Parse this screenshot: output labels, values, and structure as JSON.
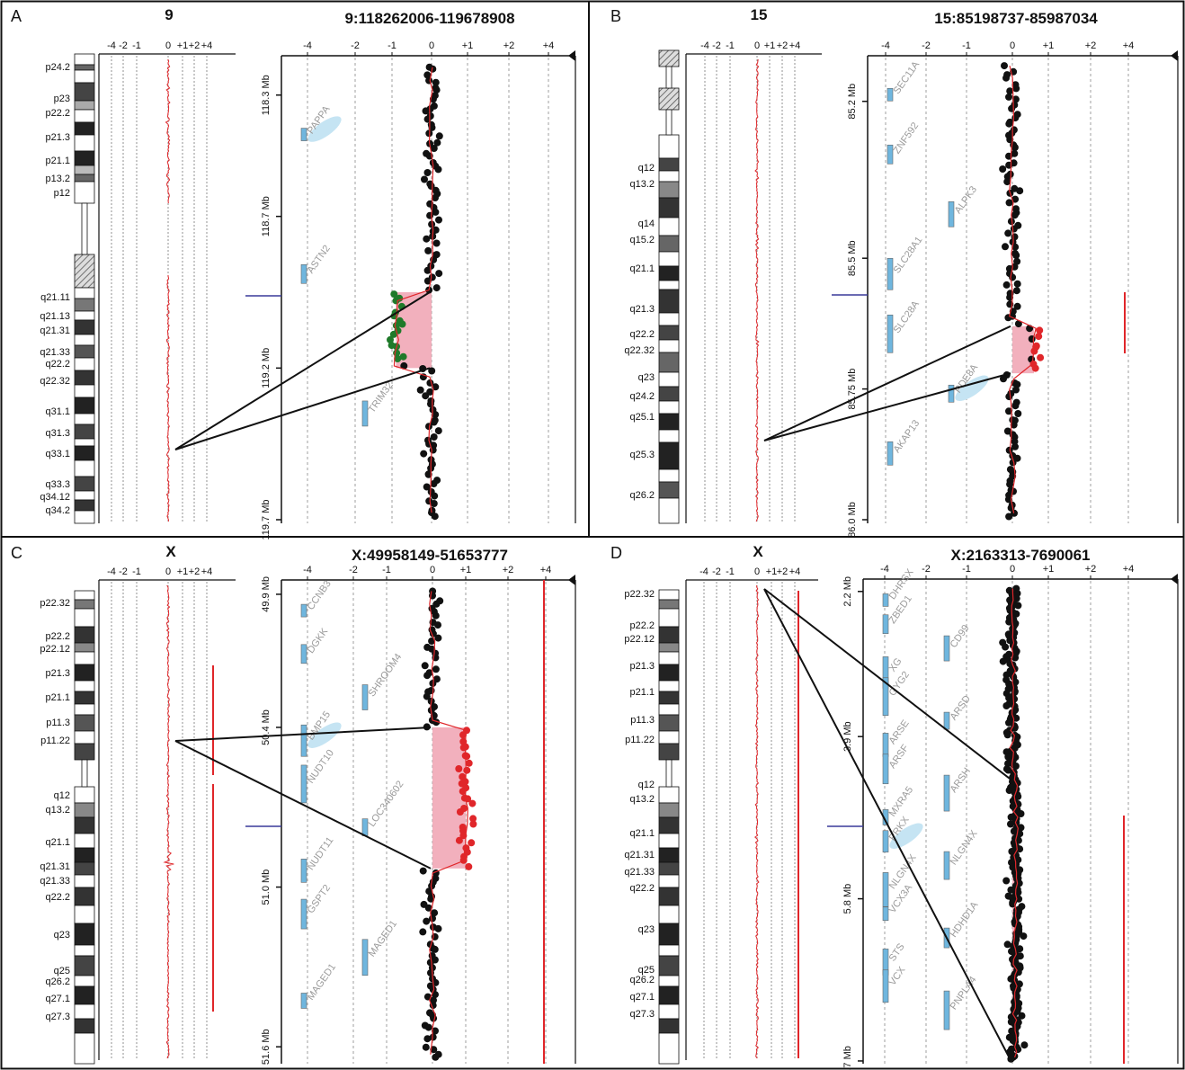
{
  "colors": {
    "trace": "#e0262a",
    "gene": "#6fb6de",
    "highlight": "#f0a2b2",
    "dot": "#111111",
    "dot_gain": "#e0262a",
    "dot_loss": "#1f7a2a",
    "marker": "#3a3a9a"
  },
  "chart_data": [
    {
      "type": "scatter",
      "panel": "A",
      "chromosome_title": "9",
      "title": "9:118262006-119678908",
      "x_tick_labels": [
        "-4",
        "-2",
        "-1",
        "0",
        "+1",
        "+2",
        "+4"
      ],
      "overview_tick_labels": [
        "-4",
        "-2",
        "-1",
        "0",
        "+1",
        "+2",
        "+4"
      ],
      "y_tick_labels": [
        "118.3 Mb",
        "118.7 Mb",
        "119.2 Mb",
        "119.7 Mb"
      ],
      "y_ticks": [
        118.3,
        118.7,
        119.2,
        119.7
      ],
      "ylim": [
        118.2,
        119.7
      ],
      "bands": [
        "p24.2",
        "p23",
        "p22.2",
        "p21.3",
        "p21.1",
        "p13.2",
        "p12",
        "q21.11",
        "q21.13",
        "q21.31",
        "q21.33",
        "q22.2",
        "q22.32",
        "q31.1",
        "q31.3",
        "q33.1",
        "q33.3",
        "q34.12",
        "q34.2"
      ],
      "genes": [
        {
          "label": "PAPPA",
          "highlight": true
        },
        {
          "label": "ASTN2",
          "highlight": false
        },
        {
          "label": "TRIM32",
          "highlight": false
        }
      ],
      "region": [
        118.95,
        119.2
      ],
      "region_value": -0.9
    },
    {
      "type": "scatter",
      "panel": "B",
      "chromosome_title": "15",
      "title": "15:85198737-85987034",
      "x_tick_labels": [
        "-4",
        "-2",
        "-1",
        "0",
        "+1",
        "+2",
        "+4"
      ],
      "overview_tick_labels": [
        "-4",
        "-2",
        "-1",
        "0",
        "+1",
        "+2",
        "+4"
      ],
      "y_tick_labels": [
        "85.2 Mb",
        "85.5 Mb",
        "85.75 Mb",
        "86.0 Mb"
      ],
      "y_ticks": [
        85.2,
        85.5,
        85.75,
        86.0
      ],
      "ylim": [
        85.13,
        86.0
      ],
      "bands": [
        "q12",
        "q13.2",
        "q14",
        "q15.2",
        "q21.1",
        "q21.3",
        "q22.2",
        "q22.32",
        "q23",
        "q24.2",
        "q25.1",
        "q25.3",
        "q26.2"
      ],
      "genes": [
        {
          "label": "SEC11A",
          "highlight": false
        },
        {
          "label": "ZNF592",
          "highlight": false
        },
        {
          "label": "ALPK3",
          "highlight": false
        },
        {
          "label": "SLC28A1",
          "highlight": false
        },
        {
          "label": "SLC28A",
          "highlight": false
        },
        {
          "label": "PDE8A",
          "highlight": true
        },
        {
          "label": "AKAP13",
          "highlight": false
        }
      ],
      "region": [
        85.63,
        85.72
      ],
      "region_value": 0.6
    },
    {
      "type": "scatter",
      "panel": "C",
      "chromosome_title": "X",
      "title": "X:49958149-51653777",
      "x_tick_labels": [
        "-4",
        "-2",
        "-1",
        "0",
        "+1",
        "+2",
        "+4"
      ],
      "overview_tick_labels": [
        "-4",
        "-2",
        "-1",
        "0",
        "+1",
        "+2",
        "+4"
      ],
      "y_tick_labels": [
        "49.9 Mb",
        "50.4 Mb",
        "51.0 Mb",
        "51.6 Mb"
      ],
      "y_ticks": [
        49.9,
        50.4,
        51.0,
        51.6
      ],
      "ylim": [
        49.88,
        51.65
      ],
      "bands": [
        "p22.32",
        "p22.2",
        "p22.12",
        "p21.3",
        "p21.1",
        "p11.3",
        "p11.22",
        "q12",
        "q13.2",
        "q21.1",
        "q21.31",
        "q21.33",
        "q22.2",
        "q23",
        "q25",
        "q26.2",
        "q27.1",
        "q27.3"
      ],
      "genes": [
        {
          "label": "CCNB3",
          "highlight": false
        },
        {
          "label": "DGKK",
          "highlight": false
        },
        {
          "label": "SHROOM4",
          "highlight": false
        },
        {
          "label": "BMP15",
          "highlight": true
        },
        {
          "label": "NUDT10",
          "highlight": false
        },
        {
          "label": "LOC340602",
          "highlight": false
        },
        {
          "label": "NUDT11",
          "highlight": false
        },
        {
          "label": "GSPT2",
          "highlight": false
        },
        {
          "label": "MAGED1",
          "highlight": false
        },
        {
          "label": "MAGED1",
          "highlight": false
        }
      ],
      "region": [
        50.4,
        50.93
      ],
      "region_value": 1.0
    },
    {
      "type": "scatter",
      "panel": "D",
      "chromosome_title": "X",
      "title": "X:2163313-7690061",
      "x_tick_labels": [
        "-4",
        "-2",
        "-1",
        "0",
        "+1",
        "+2",
        "+4"
      ],
      "overview_tick_labels": [
        "-4",
        "-2",
        "-1",
        "0",
        "+1",
        "+2",
        "+4"
      ],
      "y_tick_labels": [
        "2.2 Mb",
        "3.9 Mb",
        "5.8 Mb",
        "7.7 Mb"
      ],
      "y_ticks": [
        2.2,
        3.9,
        5.8,
        7.7
      ],
      "ylim": [
        2.16,
        7.69
      ],
      "bands": [
        "p22.32",
        "p22.2",
        "p22.12",
        "p21.3",
        "p21.1",
        "p11.3",
        "p11.22",
        "q12",
        "q13.2",
        "q21.1",
        "q21.31",
        "q21.33",
        "q22.2",
        "q23",
        "q25",
        "q26.2",
        "q27.1",
        "q27.3"
      ],
      "genes": [
        {
          "label": "DHRSX",
          "highlight": false
        },
        {
          "label": "ZBED1",
          "highlight": false
        },
        {
          "label": "CD99",
          "highlight": false
        },
        {
          "label": "XG",
          "highlight": false
        },
        {
          "label": "GYG2",
          "highlight": false
        },
        {
          "label": "ARSD",
          "highlight": false
        },
        {
          "label": "ARSE",
          "highlight": false
        },
        {
          "label": "ARSF",
          "highlight": false
        },
        {
          "label": "ARSH",
          "highlight": false
        },
        {
          "label": "MXRA5",
          "highlight": false
        },
        {
          "label": "PRKX",
          "highlight": true
        },
        {
          "label": "NLGN4X",
          "highlight": false
        },
        {
          "label": "NLGN4X",
          "highlight": false
        },
        {
          "label": "VCX3A",
          "highlight": false
        },
        {
          "label": "HDHD1A",
          "highlight": false
        },
        {
          "label": "STS",
          "highlight": false
        },
        {
          "label": "VCX",
          "highlight": false
        },
        {
          "label": "PNPLA4",
          "highlight": false
        }
      ],
      "region": [
        4.4,
        7.69
      ],
      "region_value": 0.1
    }
  ]
}
